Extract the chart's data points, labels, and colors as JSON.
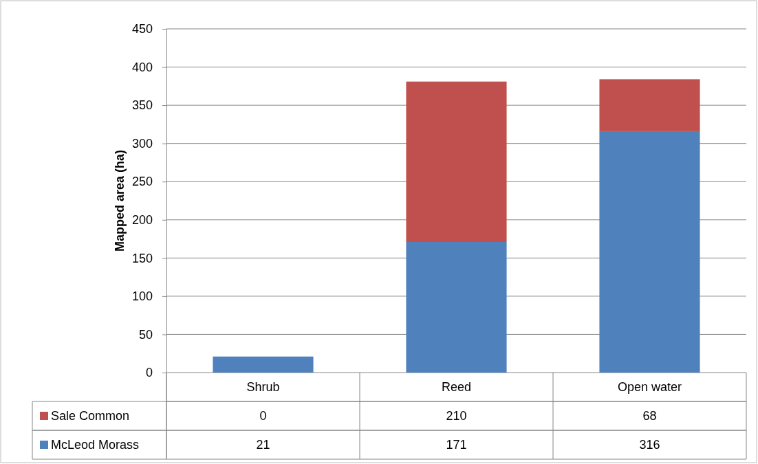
{
  "chart_data": {
    "type": "bar",
    "ylabel": "Mapped area (ha)",
    "categories": [
      "Shrub",
      "Reed",
      "Open water"
    ],
    "stacked": true,
    "series": [
      {
        "name": "McLeod Morass",
        "color": "#4f81bd",
        "values": [
          21,
          171,
          316
        ]
      },
      {
        "name": "Sale Common",
        "color": "#c0504d",
        "values": [
          0,
          210,
          68
        ]
      }
    ],
    "ylim": [
      0,
      450
    ],
    "yticks": [
      0,
      50,
      100,
      150,
      200,
      250,
      300,
      350,
      400,
      450
    ],
    "grid": "y",
    "legend": "bottom",
    "data_labels": true
  }
}
